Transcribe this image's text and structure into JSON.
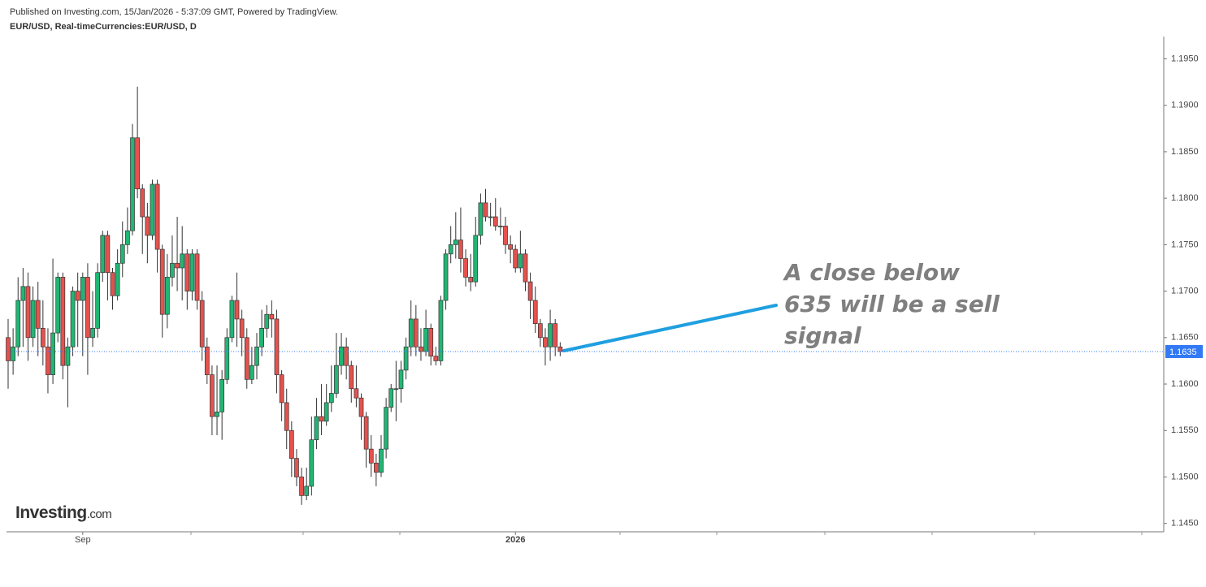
{
  "header": {
    "published": "Published on Investing.com, 15/Jan/2026 - 5:37:09 GMT, Powered by TradingView.",
    "symbol": "EUR/USD, Real-timeCurrencies:EUR/USD, D"
  },
  "logo": {
    "name": "Investing",
    "suffix": ".com"
  },
  "chart_data": {
    "type": "candlestick",
    "categories": [
      null,
      null,
      null,
      null,
      null,
      null,
      null,
      null,
      null,
      null,
      null,
      null,
      null,
      null,
      null,
      "Sep",
      null,
      null,
      null,
      null,
      null,
      null,
      null,
      null,
      null,
      null,
      null,
      null,
      null,
      null,
      null,
      null,
      null,
      null,
      null,
      null,
      null,
      null,
      null,
      null,
      null,
      null,
      null,
      null,
      null,
      null,
      null,
      null,
      null,
      null,
      null,
      null,
      null,
      null,
      null,
      null,
      null,
      null,
      null,
      null,
      null,
      null,
      null,
      null,
      null,
      null,
      null,
      null,
      null,
      null,
      null,
      null,
      null,
      null,
      null,
      null,
      null,
      null,
      null,
      null,
      null,
      null,
      null,
      null,
      null,
      null,
      null,
      null,
      null,
      null,
      null,
      null,
      null,
      null,
      null,
      null,
      null,
      null,
      null,
      null,
      null,
      null,
      "2026",
      null,
      null,
      null,
      null,
      null,
      null,
      null,
      null,
      null
    ],
    "series": [
      {
        "name": "EUR/USD",
        "up_color": "#22b573",
        "down_color": "#e5524e",
        "open": [
          1.165,
          1.1625,
          1.164,
          1.169,
          1.1705,
          1.165,
          1.169,
          1.166,
          1.164,
          1.161,
          1.1655,
          1.1715,
          1.162,
          1.164,
          1.17,
          1.169,
          1.1715,
          1.165,
          1.166,
          1.172,
          1.176,
          1.172,
          1.1695,
          1.173,
          1.175,
          1.1765,
          1.1865,
          1.181,
          1.178,
          1.176,
          1.1815,
          1.1745,
          1.1675,
          1.1715,
          1.173,
          1.1725,
          1.174,
          1.17,
          1.174,
          1.169,
          1.164,
          1.161,
          1.1565,
          1.157,
          1.1605,
          1.165,
          1.169,
          1.167,
          1.165,
          1.1605,
          1.162,
          1.164,
          1.166,
          1.1675,
          1.167,
          1.161,
          1.158,
          1.155,
          1.152,
          1.15,
          1.148,
          1.149,
          1.154,
          1.1565,
          1.156,
          1.158,
          1.159,
          1.162,
          1.164,
          1.162,
          1.1595,
          1.1585,
          1.1565,
          1.153,
          1.1515,
          1.1505,
          1.153,
          1.1575,
          1.1595,
          1.1595,
          1.1615,
          1.164,
          1.167,
          1.164,
          1.1635,
          1.166,
          1.163,
          1.1625,
          1.169,
          1.174,
          1.175,
          1.1755,
          1.1735,
          1.1715,
          1.171,
          1.176,
          1.1795,
          1.178,
          1.178,
          1.177,
          1.177,
          1.175,
          1.1745,
          1.1725,
          1.174,
          1.171,
          1.169,
          1.1665,
          1.165,
          1.164,
          1.1665,
          1.164
        ],
        "high": [
          1.167,
          1.166,
          1.1715,
          1.1725,
          1.172,
          1.1705,
          1.171,
          1.169,
          1.166,
          1.1735,
          1.172,
          1.172,
          1.165,
          1.1705,
          1.172,
          1.172,
          1.173,
          1.17,
          1.173,
          1.1765,
          1.1765,
          1.1725,
          1.1745,
          1.1775,
          1.179,
          1.188,
          1.192,
          1.1815,
          1.1795,
          1.182,
          1.182,
          1.175,
          1.174,
          1.176,
          1.178,
          1.177,
          1.1745,
          1.1745,
          1.1745,
          1.17,
          1.165,
          1.162,
          1.162,
          1.1615,
          1.166,
          1.1695,
          1.172,
          1.168,
          1.166,
          1.164,
          1.1655,
          1.168,
          1.1685,
          1.169,
          1.168,
          1.1615,
          1.1595,
          1.156,
          1.153,
          1.151,
          1.151,
          1.1565,
          1.1585,
          1.16,
          1.16,
          1.162,
          1.1655,
          1.1655,
          1.165,
          1.1625,
          1.162,
          1.159,
          1.157,
          1.1545,
          1.1525,
          1.1545,
          1.1585,
          1.16,
          1.1625,
          1.1625,
          1.165,
          1.169,
          1.1685,
          1.166,
          1.168,
          1.1665,
          1.164,
          1.1695,
          1.1745,
          1.177,
          1.1785,
          1.179,
          1.1745,
          1.174,
          1.178,
          1.1805,
          1.181,
          1.1795,
          1.18,
          1.179,
          1.178,
          1.176,
          1.175,
          1.1765,
          1.1745,
          1.172,
          1.1705,
          1.167,
          1.166,
          1.168,
          1.167,
          1.1645
        ],
        "low": [
          1.1595,
          1.161,
          1.163,
          1.164,
          1.1625,
          1.164,
          1.163,
          1.162,
          1.159,
          1.16,
          1.1645,
          1.1605,
          1.1575,
          1.163,
          1.164,
          1.163,
          1.161,
          1.164,
          1.165,
          1.171,
          1.169,
          1.168,
          1.169,
          1.1715,
          1.174,
          1.176,
          1.18,
          1.174,
          1.173,
          1.1755,
          1.172,
          1.165,
          1.166,
          1.1705,
          1.17,
          1.169,
          1.168,
          1.169,
          1.168,
          1.1625,
          1.16,
          1.1545,
          1.1545,
          1.154,
          1.16,
          1.1645,
          1.164,
          1.163,
          1.1595,
          1.16,
          1.1605,
          1.163,
          1.165,
          1.165,
          1.159,
          1.156,
          1.153,
          1.15,
          1.149,
          1.147,
          1.1475,
          1.148,
          1.153,
          1.1545,
          1.1555,
          1.157,
          1.1585,
          1.161,
          1.1605,
          1.158,
          1.1575,
          1.154,
          1.151,
          1.15,
          1.149,
          1.15,
          1.152,
          1.157,
          1.156,
          1.158,
          1.1605,
          1.163,
          1.163,
          1.1625,
          1.163,
          1.162,
          1.162,
          1.162,
          1.168,
          1.173,
          1.1735,
          1.172,
          1.1705,
          1.17,
          1.1705,
          1.175,
          1.1775,
          1.177,
          1.1765,
          1.176,
          1.174,
          1.173,
          1.172,
          1.172,
          1.17,
          1.167,
          1.1655,
          1.164,
          1.162,
          1.1625,
          1.163,
          1.163
        ],
        "close": [
          1.1625,
          1.164,
          1.169,
          1.1705,
          1.165,
          1.169,
          1.166,
          1.164,
          1.161,
          1.1655,
          1.1715,
          1.162,
          1.164,
          1.17,
          1.169,
          1.1715,
          1.165,
          1.166,
          1.172,
          1.176,
          1.172,
          1.1695,
          1.173,
          1.175,
          1.1765,
          1.1865,
          1.181,
          1.178,
          1.176,
          1.1815,
          1.1745,
          1.1675,
          1.1715,
          1.173,
          1.1725,
          1.174,
          1.17,
          1.174,
          1.169,
          1.164,
          1.161,
          1.1565,
          1.157,
          1.1605,
          1.165,
          1.169,
          1.167,
          1.165,
          1.1605,
          1.162,
          1.164,
          1.166,
          1.1675,
          1.167,
          1.161,
          1.158,
          1.155,
          1.152,
          1.15,
          1.148,
          1.149,
          1.154,
          1.1565,
          1.156,
          1.158,
          1.159,
          1.162,
          1.164,
          1.162,
          1.1595,
          1.1585,
          1.1565,
          1.153,
          1.1515,
          1.1505,
          1.153,
          1.1575,
          1.1595,
          1.1595,
          1.1615,
          1.164,
          1.167,
          1.164,
          1.1635,
          1.166,
          1.163,
          1.1625,
          1.169,
          1.174,
          1.175,
          1.1755,
          1.1735,
          1.1715,
          1.171,
          1.176,
          1.1795,
          1.178,
          1.178,
          1.177,
          1.177,
          1.175,
          1.1745,
          1.1725,
          1.174,
          1.171,
          1.169,
          1.1665,
          1.165,
          1.164,
          1.1665,
          1.164,
          1.1635
        ]
      }
    ],
    "ylim": [
      1.1441,
      1.1974
    ],
    "yticks": [
      {
        "value": 1.145,
        "label": "1.1450"
      },
      {
        "value": 1.15,
        "label": "1.1500"
      },
      {
        "value": 1.155,
        "label": "1.1550"
      },
      {
        "value": 1.16,
        "label": "1.1600"
      },
      {
        "value": 1.165,
        "label": "1.1650"
      },
      {
        "value": 1.17,
        "label": "1.1700"
      },
      {
        "value": 1.175,
        "label": "1.1750"
      },
      {
        "value": 1.18,
        "label": "1.1800"
      },
      {
        "value": 1.185,
        "label": "1.1850"
      },
      {
        "value": 1.19,
        "label": "1.1900"
      },
      {
        "value": 1.195,
        "label": "1.1950"
      }
    ],
    "last_price": 1.1635,
    "last_price_color": "#3179f5",
    "annotation": [
      "A close below",
      "635 will be a sell",
      "signal"
    ]
  }
}
